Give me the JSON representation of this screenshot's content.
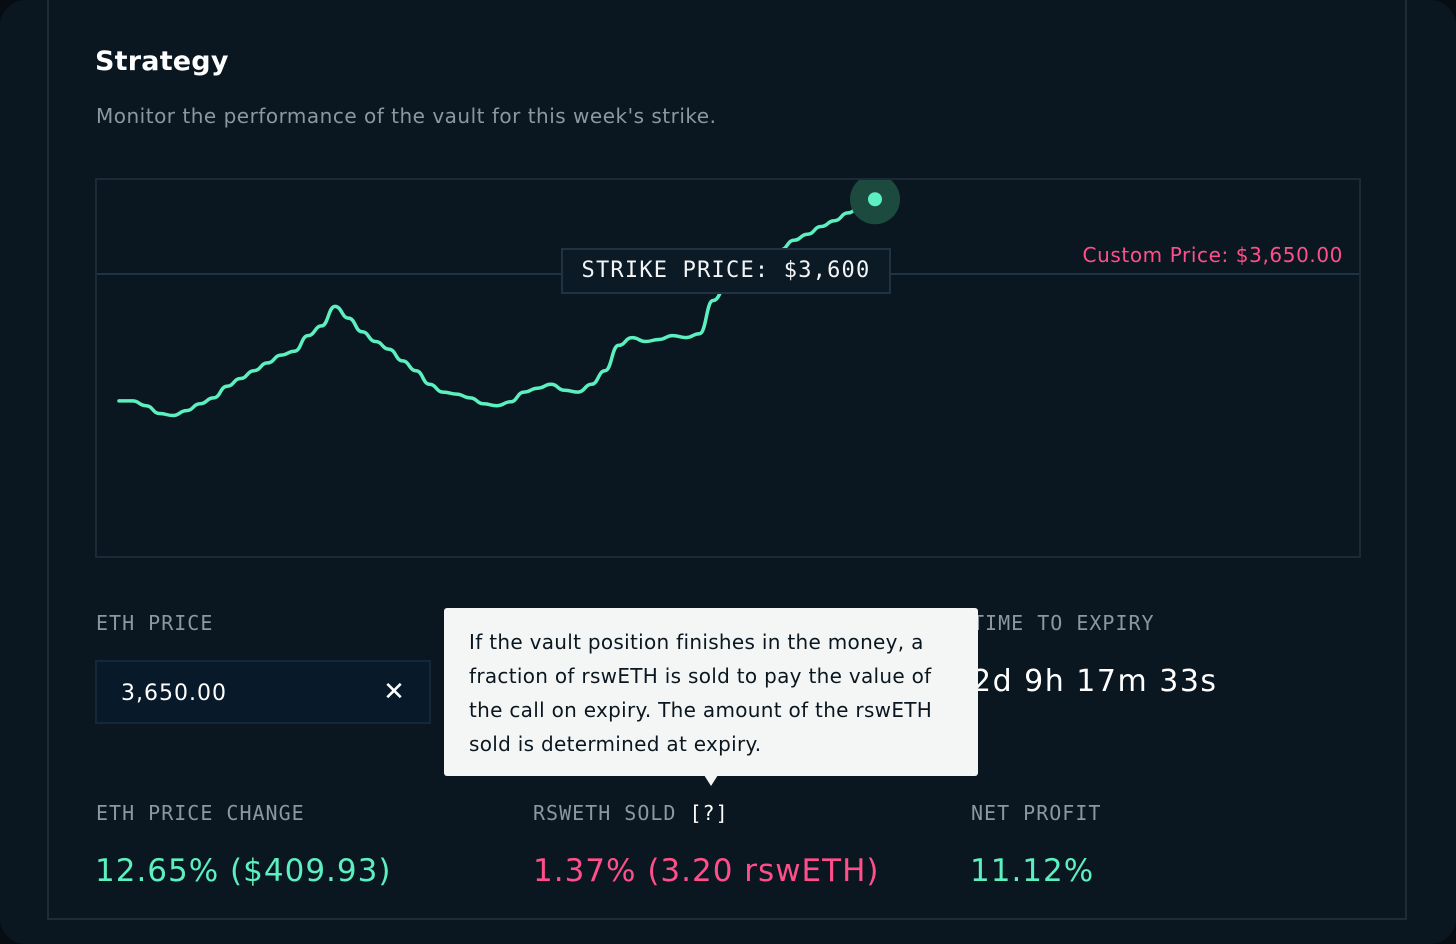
{
  "strategy": {
    "title": "Strategy",
    "subtitle": "Monitor the performance of the vault for this week's strike."
  },
  "chart": {
    "strike_label": "STRIKE PRICE: $3,600",
    "custom_price_label": "Custom Price: $3,650.00",
    "colors": {
      "line": "#5cf0c0",
      "custom_price": "#ff4f8b",
      "marker_halo": "#1d4a3e"
    }
  },
  "chart_data": {
    "type": "line",
    "series": [
      {
        "values": [
          3295,
          3295,
          3290,
          3282,
          3280,
          3285,
          3292,
          3298,
          3310,
          3318,
          3326,
          3334,
          3342,
          3346,
          3362,
          3372,
          3392,
          3380,
          3366,
          3356,
          3348,
          3336,
          3326,
          3312,
          3304,
          3302,
          3298,
          3292,
          3290,
          3294,
          3304,
          3308,
          3312,
          3306,
          3304,
          3312,
          3326,
          3352,
          3360,
          3356,
          3358,
          3362,
          3360,
          3364,
          3398,
          3412,
          3418,
          3428,
          3442,
          3450,
          3460,
          3466,
          3474,
          3480,
          3488,
          3496,
          3502
        ]
      }
    ],
    "reference_lines": [
      {
        "value": 3650
      }
    ]
  },
  "stats": {
    "eth_price": {
      "label": "ETH PRICE",
      "value": "3,650.00",
      "clear_icon": "close-icon"
    },
    "time_to_expiry": {
      "label": "TIME TO EXPIRY",
      "value": "2d 9h 17m 33s"
    },
    "eth_price_change": {
      "label": "ETH PRICE CHANGE",
      "value": "12.65% ($409.93)"
    },
    "rsweth_sold": {
      "label": "RSWETH SOLD",
      "help": "[?]",
      "value": "1.37% (3.20 rswETH)"
    },
    "net_profit": {
      "label": "NET PROFIT",
      "value": "11.12%"
    }
  },
  "tooltip": {
    "lines": [
      "If the vault position finishes in the money, a",
      "fraction of rswETH is sold to pay the value of",
      "the call on expiry. The amount of the rswETH",
      "sold is determined at expiry."
    ]
  }
}
